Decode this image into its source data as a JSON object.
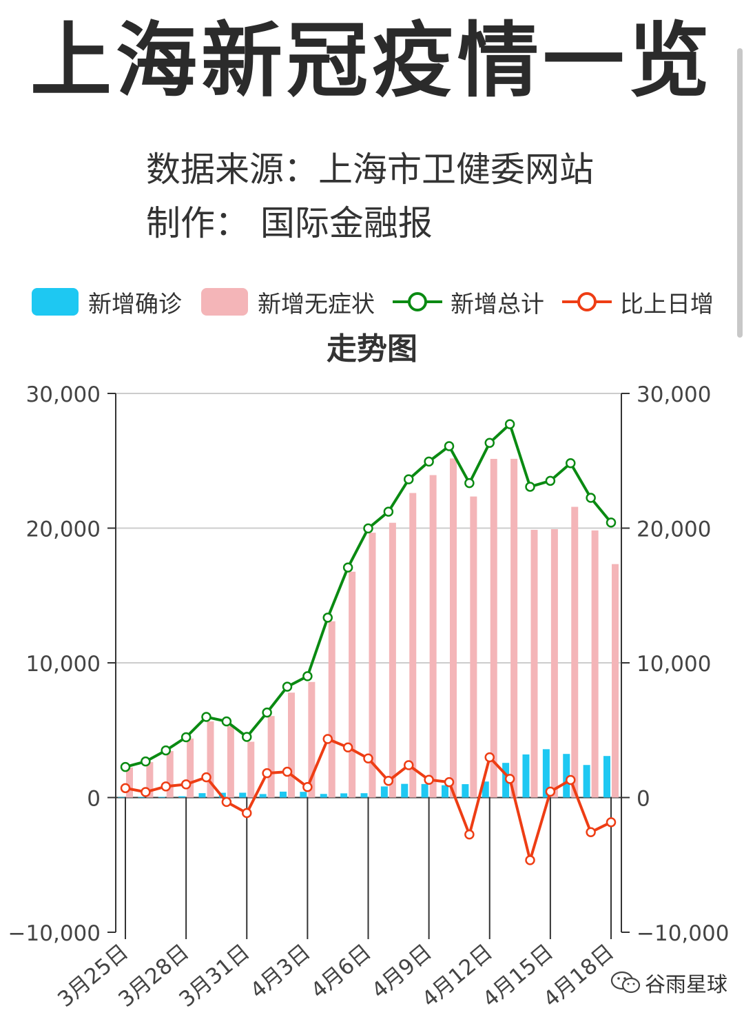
{
  "header": {
    "title": "上海新冠疫情一览",
    "source_line": "数据来源：上海市卫健委网站",
    "author_line": "制作：  国际金融报"
  },
  "colors": {
    "confirmed": "#1ec8f2",
    "asymptomatic": "#f4b5b8",
    "total": "#0a8a12",
    "change": "#ee3d14",
    "axis": "#333333",
    "grid": "#cccccc"
  },
  "watermark": {
    "icon": "wechat-icon",
    "text": "谷雨星球"
  },
  "chart_data": {
    "type": "bar",
    "title": "走势图",
    "legend_position": "top",
    "grid": true,
    "categories": [
      "3月25日",
      "3月26日",
      "3月27日",
      "3月28日",
      "3月29日",
      "3月30日",
      "3月31日",
      "4月1日",
      "4月2日",
      "4月3日",
      "4月4日",
      "4月5日",
      "4月6日",
      "4月7日",
      "4月8日",
      "4月9日",
      "4月10日",
      "4月11日",
      "4月12日",
      "4月13日",
      "4月14日",
      "4月15日",
      "4月16日",
      "4月17日",
      "4月18日"
    ],
    "tick_labels": [
      "3月25日",
      "3月28日",
      "3月31日",
      "4月3日",
      "4月6日",
      "4月9日",
      "4月12日",
      "4月15日",
      "4月18日"
    ],
    "ylim": [
      -10000,
      30000
    ],
    "y_ticks": [
      "30,000",
      "20,000",
      "10,000",
      "0",
      "−10,000"
    ],
    "series": [
      {
        "name": "新增确诊",
        "type": "bar",
        "color": "#1ec8f2",
        "values": [
          38,
          45,
          50,
          96,
          326,
          355,
          358,
          260,
          438,
          425,
          268,
          311,
          322,
          824,
          1015,
          1006,
          914,
          994,
          1189,
          2573,
          3200,
          3590,
          3238,
          2417,
          3084
        ]
      },
      {
        "name": "新增无症状",
        "type": "bar",
        "color": "#f4b5b8",
        "values": [
          2231,
          2631,
          3450,
          4381,
          5656,
          5298,
          4144,
          6051,
          7788,
          8581,
          13086,
          16766,
          19660,
          20398,
          22609,
          23937,
          25173,
          22348,
          25141,
          25146,
          19872,
          19923,
          21582,
          19831,
          17332
        ]
      },
      {
        "name": "新增总计",
        "type": "line",
        "color": "#0a8a12",
        "values": [
          2269,
          2676,
          3500,
          4477,
          5982,
          5653,
          4502,
          6311,
          8226,
          9006,
          13354,
          17077,
          19982,
          21222,
          23624,
          24943,
          26087,
          23342,
          26330,
          27719,
          23072,
          23513,
          24820,
          22248,
          20416
        ]
      },
      {
        "name": "比上日增",
        "type": "line",
        "color": "#ee3d14",
        "values": [
          700,
          407,
          824,
          977,
          1505,
          -329,
          -1151,
          1809,
          1915,
          780,
          4348,
          3723,
          2905,
          1240,
          2402,
          1319,
          1144,
          -2745,
          2988,
          1389,
          -4647,
          441,
          1307,
          -2572,
          -1832
        ]
      }
    ]
  }
}
